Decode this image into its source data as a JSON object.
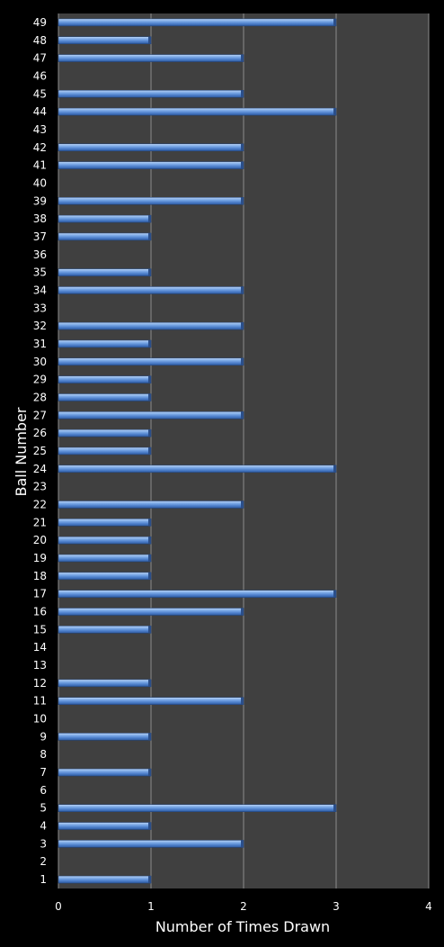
{
  "chart_data": {
    "type": "bar",
    "orientation": "horizontal",
    "xlabel": "Number of Times Drawn",
    "ylabel": "Ball Number",
    "xlim": [
      0,
      4
    ],
    "xticks": [
      "0",
      "1",
      "2",
      "3",
      "4"
    ],
    "grid": "vertical",
    "background_color": "#000000",
    "plot_background_color": "#404040",
    "bar_color": "#5b8fd6",
    "categories": [
      "1",
      "2",
      "3",
      "4",
      "5",
      "6",
      "7",
      "8",
      "9",
      "10",
      "11",
      "12",
      "13",
      "14",
      "15",
      "16",
      "17",
      "18",
      "19",
      "20",
      "21",
      "22",
      "23",
      "24",
      "25",
      "26",
      "27",
      "28",
      "29",
      "30",
      "31",
      "32",
      "33",
      "34",
      "35",
      "36",
      "37",
      "38",
      "39",
      "40",
      "41",
      "42",
      "43",
      "44",
      "45",
      "46",
      "47",
      "48",
      "49"
    ],
    "values": [
      1,
      0,
      2,
      1,
      3,
      0,
      1,
      0,
      1,
      0,
      2,
      1,
      0,
      0,
      1,
      2,
      3,
      1,
      1,
      1,
      1,
      2,
      0,
      3,
      1,
      1,
      2,
      1,
      1,
      2,
      1,
      2,
      0,
      2,
      1,
      0,
      1,
      1,
      2,
      0,
      2,
      2,
      0,
      3,
      2,
      0,
      2,
      1,
      3
    ]
  }
}
